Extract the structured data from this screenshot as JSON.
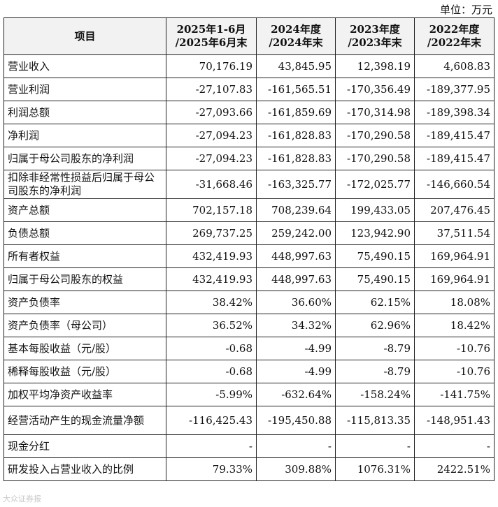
{
  "unit_label": "单位：万元",
  "table": {
    "header": [
      [
        "项目"
      ],
      [
        "2025年1-6月",
        "/2025年6月末"
      ],
      [
        "2024年度",
        "/2024年末"
      ],
      [
        "2023年度",
        "/2023年末"
      ],
      [
        "2022年度",
        "/2022年末"
      ]
    ],
    "rows": [
      {
        "label": "营业收入",
        "values": [
          "70,176.19",
          "43,845.95",
          "12,398.19",
          "4,608.83"
        ]
      },
      {
        "label": "营业利润",
        "values": [
          "-27,107.83",
          "-161,565.51",
          "-170,356.49",
          "-189,377.95"
        ]
      },
      {
        "label": "利润总额",
        "values": [
          "-27,093.66",
          "-161,859.69",
          "-170,314.98",
          "-189,398.34"
        ]
      },
      {
        "label": "净利润",
        "values": [
          "-27,094.23",
          "-161,828.83",
          "-170,290.58",
          "-189,415.47"
        ]
      },
      {
        "label": "归属于母公司股东的净利润",
        "values": [
          "-27,094.23",
          "-161,828.83",
          "-170,290.58",
          "-189,415.47"
        ]
      },
      {
        "label": "扣除非经常性损益后归属于母公司股东的净利润",
        "values": [
          "-31,668.46",
          "-163,325.77",
          "-172,025.77",
          "-146,660.54"
        ],
        "tall": true
      },
      {
        "label": "资产总额",
        "values": [
          "702,157.18",
          "708,239.64",
          "199,433.05",
          "207,476.45"
        ]
      },
      {
        "label": "负债总额",
        "values": [
          "269,737.25",
          "259,242.00",
          "123,942.90",
          "37,511.54"
        ]
      },
      {
        "label": "所有者权益",
        "values": [
          "432,419.93",
          "448,997.63",
          "75,490.15",
          "169,964.91"
        ]
      },
      {
        "label": "归属于母公司股东的权益",
        "values": [
          "432,419.93",
          "448,997.63",
          "75,490.15",
          "169,964.91"
        ]
      },
      {
        "label": "资产负债率",
        "values": [
          "38.42%",
          "36.60%",
          "62.15%",
          "18.08%"
        ]
      },
      {
        "label": "资产负债率（母公司）",
        "values": [
          "36.52%",
          "34.32%",
          "62.96%",
          "18.42%"
        ]
      },
      {
        "label": "基本每股收益（元/股）",
        "values": [
          "-0.68",
          "-4.99",
          "-8.79",
          "-10.76"
        ]
      },
      {
        "label": "稀释每股收益（元/股）",
        "values": [
          "-0.68",
          "-4.99",
          "-8.79",
          "-10.76"
        ]
      },
      {
        "label": "加权平均净资产收益率",
        "values": [
          "-5.99%",
          "-632.64%",
          "-158.24%",
          "-141.75%"
        ]
      },
      {
        "label": "经营活动产生的现金流量净额",
        "values": [
          "-116,425.43",
          "-195,450.88",
          "-115,813.35",
          "-148,951.43"
        ],
        "tall": true
      },
      {
        "label": "现金分红",
        "values": [
          "-",
          "-",
          "-",
          "-"
        ]
      },
      {
        "label": "研发投入占营业收入的比例",
        "values": [
          "79.33%",
          "309.88%",
          "1076.31%",
          "2422.51%"
        ]
      }
    ]
  },
  "watermark": "大众证券报"
}
